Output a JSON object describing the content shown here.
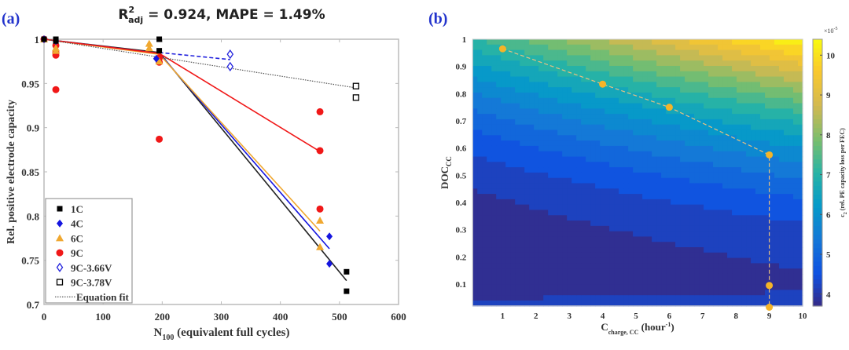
{
  "chart_data": [
    {
      "type": "scatter",
      "panel_label": "(a)",
      "title_parts": {
        "r": "R",
        "sup": "2",
        "sub": "adj",
        "rest": " = 0.924, MAPE = 1.49%"
      },
      "xlabel": {
        "main": "N",
        "sub": "100",
        "rest": " (equivalent full cycles)"
      },
      "ylabel": "Rel. positive electrode capacity",
      "xlim": [
        0,
        600
      ],
      "ylim": [
        0.7,
        1.0
      ],
      "xticks": [
        "0",
        "100",
        "200",
        "300",
        "400",
        "500",
        "600"
      ],
      "yticks": [
        "0.7",
        "0.75",
        "0.8",
        "0.85",
        "0.9",
        "0.95",
        "1"
      ],
      "grid": false,
      "legend_position": "bottom-left",
      "series": [
        {
          "name": "1C",
          "marker": "square-filled",
          "color": "#000000",
          "points": [
            [
              0,
              1.0
            ],
            [
              20,
              1.0
            ],
            [
              20,
              0.998
            ],
            [
              195,
              1.0
            ],
            [
              195,
              0.987
            ],
            [
              512,
              0.737
            ],
            [
              512,
              0.715
            ]
          ],
          "fit": [
            [
              0,
              1.0
            ],
            [
              195,
              0.985
            ],
            [
              512,
              0.727
            ]
          ]
        },
        {
          "name": "4C",
          "marker": "diamond-filled",
          "color": "#1515e0",
          "points": [
            [
              0,
              1.0
            ],
            [
              20,
              0.998
            ],
            [
              190,
              0.978
            ],
            [
              483,
              0.777
            ],
            [
              483,
              0.746
            ]
          ],
          "fit": [
            [
              0,
              1.0
            ],
            [
              195,
              0.984
            ],
            [
              483,
              0.763
            ]
          ]
        },
        {
          "name": "6C",
          "marker": "triangle-filled",
          "color": "#f0a830",
          "points": [
            [
              0,
              1.0
            ],
            [
              20,
              0.99
            ],
            [
              20,
              0.987
            ],
            [
              178,
              0.995
            ],
            [
              178,
              0.99
            ],
            [
              195,
              0.975
            ],
            [
              467,
              0.795
            ],
            [
              467,
              0.765
            ]
          ],
          "fit": [
            [
              0,
              1.0
            ],
            [
              195,
              0.983
            ],
            [
              467,
              0.783
            ]
          ]
        },
        {
          "name": "9C",
          "marker": "circle-filled",
          "color": "#f01818",
          "points": [
            [
              0,
              1.0
            ],
            [
              20,
              0.993
            ],
            [
              20,
              0.985
            ],
            [
              20,
              0.982
            ],
            [
              20,
              0.943
            ],
            [
              195,
              0.979
            ],
            [
              195,
              0.974
            ],
            [
              195,
              0.887
            ],
            [
              467,
              0.918
            ],
            [
              467,
              0.874
            ],
            [
              467,
              0.808
            ]
          ],
          "fit": [
            [
              0,
              1.0
            ],
            [
              195,
              0.984
            ],
            [
              467,
              0.873
            ]
          ]
        },
        {
          "name": "9C-3.66V",
          "marker": "diamond-open",
          "color": "#2222dd",
          "points": [
            [
              315,
              0.983
            ],
            [
              315,
              0.969
            ]
          ],
          "fit": [
            [
              195,
              0.985
            ],
            [
              315,
              0.977
            ]
          ],
          "fit_style": "dashed"
        },
        {
          "name": "9C-3.78V",
          "marker": "square-open",
          "color": "#000000",
          "points": [
            [
              528,
              0.947
            ],
            [
              528,
              0.934
            ]
          ],
          "fit": []
        },
        {
          "name": "Equation fit",
          "marker": "none",
          "color": "#333333",
          "points": [],
          "fit": [
            [
              0,
              1.0
            ],
            [
              528,
              0.945
            ]
          ],
          "fit_style": "dotted"
        }
      ]
    },
    {
      "type": "heatmap",
      "panel_label": "(b)",
      "xlabel": {
        "main": "C",
        "sub": "charge, CC",
        "rest1": " (hour",
        "sup": "-1",
        "rest2": ")"
      },
      "ylabel": {
        "main": "DOC",
        "sub": "CC"
      },
      "xlim": [
        0.1,
        10
      ],
      "ylim": [
        0.02,
        1.0
      ],
      "xticks": [
        "1",
        "2",
        "3",
        "4",
        "5",
        "6",
        "7",
        "8",
        "9",
        "10"
      ],
      "yticks": [
        "0.1",
        "0.2",
        "0.3",
        "0.4",
        "0.5",
        "0.6",
        "0.7",
        "0.8",
        "0.9",
        "1"
      ],
      "colormap": "parula",
      "colorbar": {
        "range": [
          3.7,
          10.4
        ],
        "ticks": [
          "4",
          "5",
          "6",
          "7",
          "8",
          "9",
          "10"
        ],
        "multiplier": {
          "base": "×10",
          "exp": "-5"
        },
        "label": {
          "main": "c",
          "sub": "2",
          "rest": " (rel. PE capacity loss per FEC)"
        }
      },
      "path_points": {
        "color": "#f5b428",
        "style": "dashed",
        "points": [
          [
            1,
            0.965
          ],
          [
            4,
            0.835
          ],
          [
            6,
            0.75
          ],
          [
            9,
            0.575
          ],
          [
            9,
            0.095
          ],
          [
            9,
            0.015
          ]
        ]
      }
    }
  ]
}
